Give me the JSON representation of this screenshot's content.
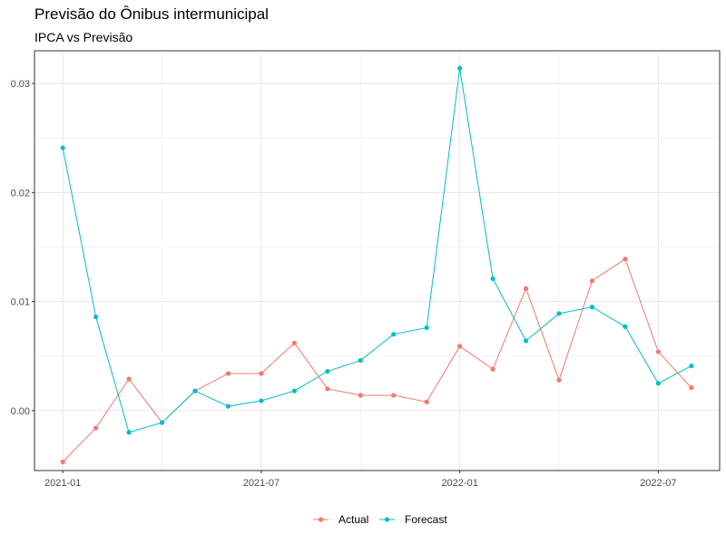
{
  "chart_data": {
    "type": "line",
    "title": "Previsão do Ônibus intermunicipal",
    "subtitle": "IPCA vs Previsão",
    "x": [
      "2021-01",
      "2021-02",
      "2021-03",
      "2021-04",
      "2021-05",
      "2021-06",
      "2021-07",
      "2021-08",
      "2021-09",
      "2021-10",
      "2021-11",
      "2021-12",
      "2022-01",
      "2022-02",
      "2022-03",
      "2022-04",
      "2022-05",
      "2022-06",
      "2022-07",
      "2022-08"
    ],
    "x_ticks": [
      "2021-01",
      "2021-07",
      "2022-01",
      "2022-07"
    ],
    "y_ticks": [
      0.0,
      0.01,
      0.02,
      0.03
    ],
    "y_tick_labels": [
      "0.00",
      "0.01",
      "0.02",
      "0.03"
    ],
    "ylim": [
      -0.0055,
      0.033
    ],
    "grid": true,
    "legend_position": "bottom",
    "series": [
      {
        "name": "Actual",
        "color": "#F8766D",
        "values": [
          -0.0047,
          -0.0016,
          0.0029,
          -0.0011,
          0.0018,
          0.0034,
          0.0034,
          0.0062,
          0.002,
          0.0014,
          0.0014,
          0.0008,
          0.0059,
          0.0038,
          0.0112,
          0.0028,
          0.0119,
          0.0139,
          0.0054,
          0.0021
        ]
      },
      {
        "name": "Forecast",
        "color": "#00BFC4",
        "values": [
          0.0241,
          0.0086,
          -0.002,
          -0.0011,
          0.0018,
          0.0004,
          0.0009,
          0.0018,
          0.0036,
          0.0046,
          0.007,
          0.0076,
          0.0314,
          0.0121,
          0.0064,
          0.0089,
          0.0095,
          0.0077,
          0.0025,
          0.0041
        ]
      }
    ]
  }
}
